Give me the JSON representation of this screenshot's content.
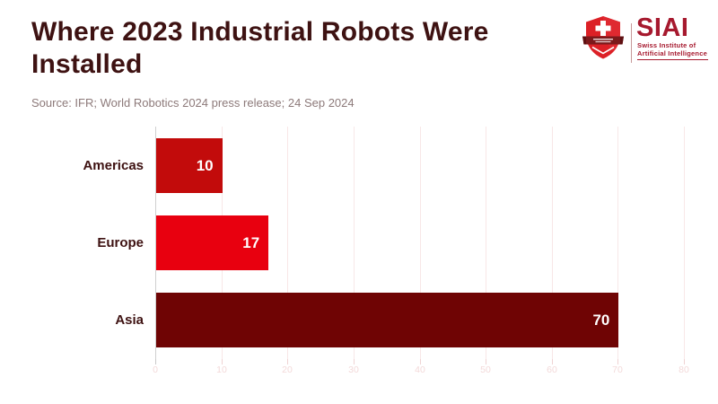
{
  "header": {
    "title": "Where 2023 Industrial Robots Were Installed",
    "source": "Source: IFR; World Robotics 2024 press release; 24 Sep 2024",
    "title_color": "#3E1212",
    "source_color": "#8D7A7A"
  },
  "logo": {
    "acronym": "SIAI",
    "subtitle_line1": "Swiss Institute of",
    "subtitle_line2": "Artificial Intelligence",
    "text_color": "#A6192E",
    "shield_red": "#DC2026",
    "shield_banner_dark": "#7C191B",
    "icon": "siai-shield-icon"
  },
  "chart_data": {
    "type": "bar",
    "orientation": "horizontal",
    "title": "Where 2023 Industrial Robots Were Installed",
    "categories": [
      "Americas",
      "Europe",
      "Asia"
    ],
    "values": [
      10,
      17,
      70
    ],
    "bar_colors": [
      "#C20B0B",
      "#E8000F",
      "#6F0404"
    ],
    "value_label_color": "#FFFFFF",
    "category_label_color": "#3E1212",
    "xlabel": "",
    "ylabel": "",
    "xlim": [
      0,
      80
    ],
    "xticks": [
      0,
      10,
      20,
      30,
      40,
      50,
      60,
      70,
      80
    ],
    "grid": true,
    "gridline_color": "#F8E7E7",
    "axis_line_color": "#CFCFCF",
    "tick_color": "#EFD3D3",
    "axis_tick_color": "#C9C9C9",
    "tick_label_color": "#F3DADA",
    "legend": false
  }
}
